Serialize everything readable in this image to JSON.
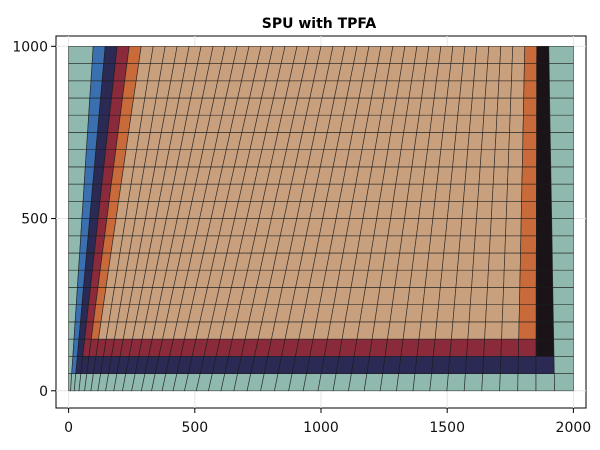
{
  "chart_data": {
    "type": "heatmap",
    "title": "SPU with TPFA",
    "xlabel": "",
    "ylabel": "",
    "xlim": [
      -50,
      2050
    ],
    "ylim": [
      -50,
      1030
    ],
    "xticks": [
      0,
      500,
      1000,
      1500,
      2000
    ],
    "xtick_labels": [
      "0",
      "500",
      "1000",
      "1500",
      "2000"
    ],
    "yticks": [
      0,
      500,
      1000
    ],
    "ytick_labels": [
      "0",
      "500",
      "1000"
    ],
    "grid": true,
    "mesh": {
      "nx": 40,
      "ny": 20,
      "x_range": [
        0,
        2000
      ],
      "y_range": [
        0,
        1000
      ],
      "top_edge_x_range": [
        50,
        1950
      ],
      "bottom_edge_column_squeeze": 0.5
    },
    "field": {
      "description_of_values": "saturation-like field, 0 = teal (outer band near left/bottom/right boundary) to 1 = tan (interior)",
      "colors": {
        "low": "#8fb8ae",
        "band1": "#3a6fb0",
        "band2": "#2a2a55",
        "band3": "#1a1418",
        "band4": "#8a2a3a",
        "band5": "#c86a3a",
        "high": "#c9a07e"
      }
    }
  }
}
